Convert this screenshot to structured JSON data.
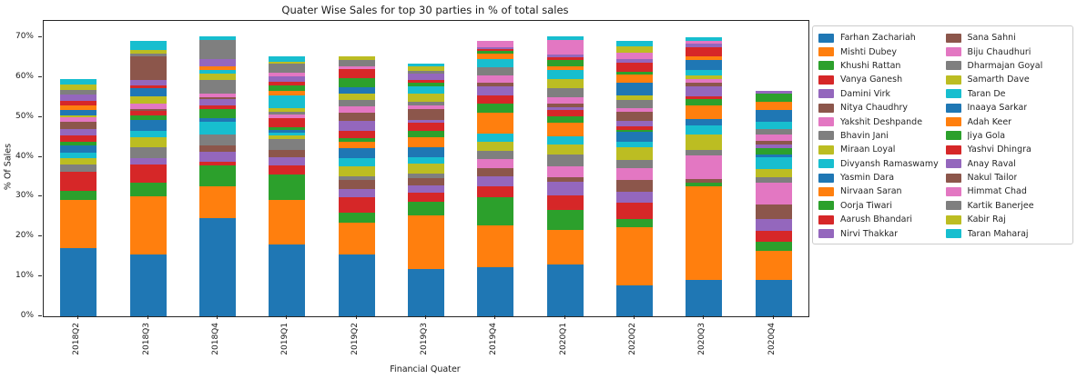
{
  "title": "Quater Wise Sales for top 30 parties in % of total sales",
  "xlabel": "Financial Quater",
  "ylabel": "% Of Sales",
  "chart_data": {
    "type": "bar",
    "subtype": "stacked",
    "title": "Quater Wise Sales for top 30 parties in % of total sales",
    "xlabel": "Financial Quater",
    "ylabel": "% Of Sales",
    "legend_position": "right-outside",
    "grid": false,
    "ylim": [
      0,
      74.1
    ],
    "yticks": [
      0,
      10,
      20,
      30,
      40,
      50,
      60,
      70
    ],
    "ytick_suffix": "%",
    "categories": [
      "2018Q2",
      "2018Q3",
      "2018Q4",
      "2019Q1",
      "2019Q2",
      "2019Q3",
      "2019Q4",
      "2020Q1",
      "2020Q2",
      "2020Q3",
      "2020Q4"
    ],
    "totals_pct": [
      59.5,
      69.1,
      70.2,
      65.2,
      65.3,
      63.5,
      69.0,
      70.2,
      69.2,
      69.9,
      56.6
    ],
    "series": [
      {
        "name": "Farhan Zachariah",
        "color": "#1f77b4",
        "values": [
          17.2,
          15.5,
          24.7,
          18.0,
          15.6,
          11.9,
          12.4,
          13.0,
          7.8,
          9.2,
          9.2
        ]
      },
      {
        "name": "Mishti Dubey",
        "color": "#ff7f0e",
        "values": [
          12.0,
          14.7,
          8.0,
          11.1,
          8.0,
          13.4,
          10.4,
          8.7,
          14.6,
          23.5,
          7.3
        ]
      },
      {
        "name": "Khushi Rattan",
        "color": "#2ca02c",
        "values": [
          2.3,
          3.4,
          5.1,
          6.4,
          2.5,
          3.4,
          7.0,
          4.9,
          1.9,
          0.9,
          2.1
        ]
      },
      {
        "name": "Vanya Ganesh",
        "color": "#d62728",
        "values": [
          4.8,
          4.4,
          0.9,
          2.3,
          3.7,
          2.3,
          2.7,
          3.7,
          4.2,
          0,
          2.9
        ]
      },
      {
        "name": "Damini Virk",
        "color": "#9467bd",
        "values": [
          0,
          1.7,
          2.5,
          2.0,
          2.1,
          1.8,
          2.7,
          3.4,
          2.7,
          0,
          2.8
        ]
      },
      {
        "name": "Nitya Chaudhry",
        "color": "#8c564b",
        "values": [
          0,
          0,
          1.7,
          2.0,
          2.3,
          1.8,
          2.0,
          1.1,
          3.0,
          0.9,
          3.8
        ]
      },
      {
        "name": "Yakshit Deshpande",
        "color": "#e377c2",
        "values": [
          0,
          0,
          0,
          0,
          0,
          0,
          2.3,
          2.8,
          3.0,
          5.8,
          5.5
        ]
      },
      {
        "name": "Bhavin Jani",
        "color": "#7f7f7f",
        "values": [
          1.7,
          2.7,
          2.7,
          2.7,
          0.9,
          1.1,
          2.0,
          3.0,
          2.1,
          1.5,
          1.4
        ]
      },
      {
        "name": "Miraan Loyal",
        "color": "#bcbd22",
        "values": [
          1.7,
          2.5,
          0,
          0.9,
          2.5,
          2.7,
          2.3,
          2.5,
          3.0,
          3.7,
          2.0
        ]
      },
      {
        "name": "Divyansh Ramaswamy",
        "color": "#17becf",
        "values": [
          1.4,
          1.7,
          3.3,
          0.7,
          2.0,
          1.6,
          2.0,
          2.1,
          1.4,
          2.3,
          3.0
        ]
      },
      {
        "name": "Yasmin Dara",
        "color": "#1f77b4",
        "values": [
          1.7,
          2.7,
          0.8,
          0.7,
          2.5,
          2.5,
          0,
          0,
          2.5,
          1.6,
          0.7
        ]
      },
      {
        "name": "Nirvaan Saran",
        "color": "#ff7f0e",
        "values": [
          0,
          0,
          0,
          0,
          1.6,
          2.5,
          5.2,
          3.4,
          0,
          3.4,
          0
        ]
      },
      {
        "name": "Oorja Tiwari",
        "color": "#2ca02c",
        "values": [
          1.0,
          1.1,
          2.4,
          0.7,
          0.9,
          1.6,
          2.3,
          1.6,
          0.5,
          1.6,
          1.4
        ]
      },
      {
        "name": "Aarush Bhandari",
        "color": "#d62728",
        "values": [
          1.5,
          1.1,
          0.7,
          2.3,
          2.0,
          2.0,
          2.0,
          1.6,
          0.9,
          0.7,
          0
        ]
      },
      {
        "name": "Nirvi Thakkar",
        "color": "#9467bd",
        "values": [
          1.7,
          0,
          1.8,
          0,
          2.5,
          0.7,
          2.5,
          0.7,
          1.4,
          2.5,
          0.9
        ]
      },
      {
        "name": "Sana Sahni",
        "color": "#8c564b",
        "values": [
          1.7,
          0.6,
          0.4,
          0,
          2.0,
          2.7,
          0.7,
          0.9,
          2.3,
          1.1,
          0.9
        ]
      },
      {
        "name": "Biju Chaudhuri",
        "color": "#e377c2",
        "values": [
          1.2,
          1.3,
          0.8,
          0.9,
          1.6,
          0.9,
          2.0,
          1.6,
          0.9,
          0.7,
          1.6
        ]
      },
      {
        "name": "Dharmajan Goyal",
        "color": "#7f7f7f",
        "values": [
          0,
          0,
          3.4,
          0.7,
          1.6,
          0.9,
          2.0,
          2.3,
          2.1,
          0,
          1.4
        ]
      },
      {
        "name": "Samarth Dave",
        "color": "#bcbd22",
        "values": [
          0.5,
          1.8,
          1.6,
          0.9,
          1.6,
          2.0,
          0,
          2.3,
          1.1,
          1.1,
          0
        ]
      },
      {
        "name": "Taran De",
        "color": "#17becf",
        "values": [
          0,
          0,
          1.0,
          3.2,
          0,
          2.0,
          2.0,
          2.1,
          0,
          1.4,
          1.8
        ]
      },
      {
        "name": "Inaaya  Sarkar",
        "color": "#1f77b4",
        "values": [
          1.4,
          2.0,
          0,
          0,
          1.6,
          0,
          0,
          0,
          3.2,
          2.3,
          3.0
        ]
      },
      {
        "name": "Adah Keer",
        "color": "#ff7f0e",
        "values": [
          1.1,
          0,
          0.8,
          1.1,
          0,
          0,
          1.4,
          1.1,
          2.1,
          0.9,
          2.1
        ]
      },
      {
        "name": "Jiya Gola",
        "color": "#2ca02c",
        "values": [
          0,
          0,
          0,
          1.4,
          2.3,
          0.7,
          0.7,
          1.6,
          0.7,
          0,
          2.1
        ]
      },
      {
        "name": "Yashvi Dhingra",
        "color": "#d62728",
        "values": [
          1.1,
          0.8,
          0,
          0.9,
          2.3,
          0.7,
          0.5,
          0.5,
          2.3,
          2.3,
          0
        ]
      },
      {
        "name": "Anay Raval",
        "color": "#9467bd",
        "values": [
          1.6,
          1.2,
          1.9,
          1.4,
          0,
          1.6,
          0.5,
          0.7,
          0.9,
          0.9,
          0.7
        ]
      },
      {
        "name": "Nakul Tailor",
        "color": "#8c564b",
        "values": [
          0,
          6.1,
          0,
          0,
          0,
          0,
          0,
          0,
          0,
          0,
          0
        ]
      },
      {
        "name": "Himmat Chad",
        "color": "#e377c2",
        "values": [
          0,
          0,
          0,
          0.9,
          0.7,
          0,
          1.4,
          3.7,
          1.6,
          0.9,
          0
        ]
      },
      {
        "name": "Kartik Banerjee",
        "color": "#7f7f7f",
        "values": [
          1.1,
          0.7,
          4.9,
          2.1,
          1.4,
          0.7,
          0,
          0,
          0,
          0,
          0
        ]
      },
      {
        "name": "Kabir Raj",
        "color": "#bcbd22",
        "values": [
          1.4,
          0.7,
          0,
          0.5,
          1.1,
          1.1,
          0,
          0,
          1.6,
          0,
          0
        ]
      },
      {
        "name": "Taran Maharaj",
        "color": "#17becf",
        "values": [
          1.4,
          2.4,
          0.8,
          1.4,
          0,
          0.9,
          0,
          0.9,
          1.4,
          0.7,
          0
        ]
      }
    ]
  }
}
